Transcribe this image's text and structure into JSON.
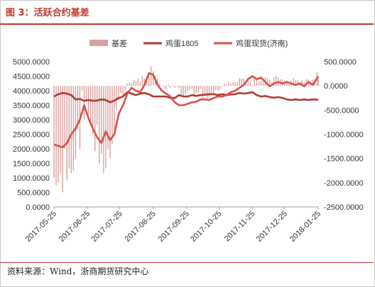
{
  "figure": {
    "title": "图 3：活跃合约基差",
    "source": "资料来源：Wind，浙商期货研究中心"
  },
  "colors": {
    "basis": "#dca0a0",
    "egg1805": "#b03a32",
    "spot": "#d9504a",
    "axis_text": "#333333",
    "axis_line": "#999999",
    "accent": "#c0392b"
  },
  "chart_data": {
    "type": "bar",
    "legend_position": "top",
    "grid": false,
    "x_tick_labels": [
      "2017-05-25",
      "2017-06-25",
      "2017-07-25",
      "2017-08-25",
      "2017-09-25",
      "2017-10-25",
      "2017-11-25",
      "2017-12-25",
      "2018-01-25"
    ],
    "x_range": [
      "2017-05-25",
      "2018-01-25"
    ],
    "y_left": {
      "ylim": [
        0,
        5000
      ],
      "tick_labels": [
        "5000.0000",
        "4500.0000",
        "4000.0000",
        "3500.0000",
        "3000.0000",
        "2500.0000",
        "2000.0000",
        "1500.0000",
        "1000.0000",
        "500.0000",
        "0.0000"
      ]
    },
    "y_right": {
      "ylim": [
        -2500,
        500
      ],
      "tick_labels": [
        "500.0000",
        "0.0000",
        "-500.0000",
        "-1000.0000",
        "-1500.0000",
        "-2000.0000",
        "-2500.0000"
      ]
    },
    "series": [
      {
        "name": "基差",
        "type": "bar",
        "axis": "right",
        "x": [
          "2017-05-25",
          "2017-05-27",
          "2017-05-29",
          "2017-05-31",
          "2017-06-02",
          "2017-06-04",
          "2017-06-06",
          "2017-06-08",
          "2017-06-10",
          "2017-06-12",
          "2017-06-14",
          "2017-06-16",
          "2017-06-18",
          "2017-06-20",
          "2017-06-22",
          "2017-06-24",
          "2017-06-26",
          "2017-06-28",
          "2017-06-30",
          "2017-07-02",
          "2017-07-04",
          "2017-07-06",
          "2017-07-08",
          "2017-07-10",
          "2017-07-12",
          "2017-07-14",
          "2017-07-16",
          "2017-07-18",
          "2017-07-20",
          "2017-07-22",
          "2017-07-24",
          "2017-07-26",
          "2017-07-28",
          "2017-07-30",
          "2017-08-01",
          "2017-08-03",
          "2017-08-05",
          "2017-08-07",
          "2017-08-09",
          "2017-08-11",
          "2017-08-13",
          "2017-08-15",
          "2017-08-17",
          "2017-08-19",
          "2017-08-21",
          "2017-08-23",
          "2017-08-25",
          "2017-08-27",
          "2017-08-29",
          "2017-08-31",
          "2017-09-02",
          "2017-09-04",
          "2017-09-06",
          "2017-09-08",
          "2017-09-10",
          "2017-09-12",
          "2017-09-14",
          "2017-09-16",
          "2017-09-18",
          "2017-09-20",
          "2017-09-22",
          "2017-09-24",
          "2017-09-26",
          "2017-09-28",
          "2017-09-30",
          "2017-10-02",
          "2017-10-04",
          "2017-10-06",
          "2017-10-08",
          "2017-10-10",
          "2017-10-12",
          "2017-10-14",
          "2017-10-16",
          "2017-10-18",
          "2017-10-20",
          "2017-10-22",
          "2017-10-24",
          "2017-10-26",
          "2017-10-28",
          "2017-10-30",
          "2017-11-01",
          "2017-11-03",
          "2017-11-05",
          "2017-11-07",
          "2017-11-09",
          "2017-11-11",
          "2017-11-13",
          "2017-11-15",
          "2017-11-17",
          "2017-11-19",
          "2017-11-21",
          "2017-11-23",
          "2017-11-25",
          "2017-11-27",
          "2017-11-29",
          "2017-12-01",
          "2017-12-03",
          "2017-12-05",
          "2017-12-07",
          "2017-12-09",
          "2017-12-11",
          "2017-12-13",
          "2017-12-15",
          "2017-12-17",
          "2017-12-19",
          "2017-12-21",
          "2017-12-23",
          "2017-12-25",
          "2017-12-27",
          "2017-12-29",
          "2017-12-31",
          "2018-01-02",
          "2018-01-04",
          "2018-01-06",
          "2018-01-08",
          "2018-01-10",
          "2018-01-12",
          "2018-01-14",
          "2018-01-16",
          "2018-01-18",
          "2018-01-20",
          "2018-01-22",
          "2018-01-24",
          "2018-01-25"
        ],
        "values": [
          -1900,
          -2050,
          -2000,
          -1800,
          -2200,
          -1300,
          -1950,
          -1700,
          -1800,
          -1750,
          -1500,
          -900,
          -1300,
          -100,
          -700,
          -300,
          -600,
          -800,
          -1000,
          -1350,
          -800,
          -1600,
          -1400,
          -1800,
          -1700,
          -1300,
          -1500,
          -1200,
          -900,
          -500,
          -300,
          -150,
          -200,
          -100,
          50,
          80,
          60,
          120,
          100,
          150,
          80,
          200,
          150,
          100,
          250,
          400,
          300,
          200,
          150,
          50,
          0,
          -30,
          -60,
          30,
          -30,
          0,
          -40,
          -20,
          -50,
          -180,
          -220,
          -170,
          -100,
          -80,
          -70,
          -220,
          -150,
          -130,
          -60,
          -280,
          -200,
          -260,
          -240,
          -150,
          -170,
          -90,
          -100,
          -80,
          -10,
          40,
          30,
          80,
          50,
          80,
          80,
          80,
          160,
          150,
          150,
          80,
          90,
          80,
          -10,
          150,
          120,
          80,
          100,
          90,
          180,
          160,
          130,
          80,
          180,
          200,
          170,
          140,
          130,
          110,
          110,
          40,
          110,
          160,
          120,
          120,
          80,
          120,
          80,
          140,
          130,
          80,
          130,
          110,
          280,
          170
        ]
      },
      {
        "name": "鸡蛋1805",
        "type": "line",
        "axis": "left",
        "x": [
          "2017-05-25",
          "2017-05-29",
          "2017-06-02",
          "2017-06-06",
          "2017-06-10",
          "2017-06-14",
          "2017-06-18",
          "2017-06-22",
          "2017-06-26",
          "2017-06-30",
          "2017-07-04",
          "2017-07-08",
          "2017-07-12",
          "2017-07-16",
          "2017-07-20",
          "2017-07-24",
          "2017-07-28",
          "2017-08-01",
          "2017-08-05",
          "2017-08-09",
          "2017-08-13",
          "2017-08-17",
          "2017-08-21",
          "2017-08-25",
          "2017-08-29",
          "2017-09-02",
          "2017-09-06",
          "2017-09-10",
          "2017-09-14",
          "2017-09-18",
          "2017-09-22",
          "2017-09-26",
          "2017-09-30",
          "2017-10-04",
          "2017-10-08",
          "2017-10-12",
          "2017-10-16",
          "2017-10-20",
          "2017-10-24",
          "2017-10-28",
          "2017-11-01",
          "2017-11-05",
          "2017-11-09",
          "2017-11-13",
          "2017-11-17",
          "2017-11-21",
          "2017-11-25",
          "2017-11-29",
          "2017-12-03",
          "2017-12-07",
          "2017-12-11",
          "2017-12-15",
          "2017-12-19",
          "2017-12-23",
          "2017-12-27",
          "2017-12-31",
          "2018-01-04",
          "2018-01-08",
          "2018-01-12",
          "2018-01-16",
          "2018-01-20",
          "2018-01-25"
        ],
        "values": [
          3800,
          3880,
          3920,
          3900,
          3850,
          3700,
          3720,
          3650,
          3680,
          3650,
          3660,
          3700,
          3680,
          3600,
          3660,
          3750,
          3800,
          3950,
          3900,
          3850,
          3900,
          3920,
          3880,
          3800,
          3800,
          3800,
          3800,
          3750,
          3750,
          3850,
          3800,
          3800,
          3850,
          3820,
          3850,
          3860,
          3880,
          3880,
          3850,
          3880,
          3850,
          3870,
          3880,
          3920,
          3900,
          3920,
          3950,
          3850,
          3800,
          3820,
          3780,
          3760,
          3780,
          3750,
          3700,
          3680,
          3700,
          3680,
          3700,
          3680,
          3700,
          3690
        ]
      },
      {
        "name": "鸡蛋现货(济南)",
        "type": "line",
        "axis": "left",
        "x": [
          "2017-05-25",
          "2017-05-29",
          "2017-06-02",
          "2017-06-06",
          "2017-06-10",
          "2017-06-14",
          "2017-06-18",
          "2017-06-22",
          "2017-06-26",
          "2017-06-30",
          "2017-07-04",
          "2017-07-08",
          "2017-07-12",
          "2017-07-16",
          "2017-07-20",
          "2017-07-24",
          "2017-07-28",
          "2017-08-01",
          "2017-08-05",
          "2017-08-09",
          "2017-08-13",
          "2017-08-17",
          "2017-08-21",
          "2017-08-25",
          "2017-08-29",
          "2017-09-02",
          "2017-09-06",
          "2017-09-10",
          "2017-09-14",
          "2017-09-18",
          "2017-09-22",
          "2017-09-26",
          "2017-09-30",
          "2017-10-04",
          "2017-10-08",
          "2017-10-12",
          "2017-10-16",
          "2017-10-20",
          "2017-10-24",
          "2017-10-28",
          "2017-11-01",
          "2017-11-05",
          "2017-11-09",
          "2017-11-13",
          "2017-11-17",
          "2017-11-21",
          "2017-11-25",
          "2017-11-29",
          "2017-12-03",
          "2017-12-07",
          "2017-12-11",
          "2017-12-15",
          "2017-12-19",
          "2017-12-23",
          "2017-12-27",
          "2017-12-31",
          "2018-01-04",
          "2018-01-08",
          "2018-01-12",
          "2018-01-16",
          "2018-01-20",
          "2018-01-25"
        ],
        "values": [
          2150,
          2100,
          2050,
          2200,
          2500,
          2700,
          3000,
          3500,
          3050,
          2700,
          2400,
          2200,
          2600,
          2300,
          2500,
          3200,
          3500,
          3900,
          4100,
          4000,
          3950,
          4200,
          4600,
          4550,
          4200,
          4000,
          3900,
          3800,
          3600,
          3500,
          3500,
          3550,
          3600,
          3620,
          3700,
          3700,
          3680,
          3750,
          3800,
          3800,
          3850,
          3950,
          4000,
          4100,
          4200,
          4400,
          4500,
          4400,
          4450,
          4300,
          4150,
          4250,
          4300,
          4250,
          4300,
          4250,
          4200,
          4250,
          4150,
          4300,
          4200,
          4500
        ]
      }
    ]
  }
}
